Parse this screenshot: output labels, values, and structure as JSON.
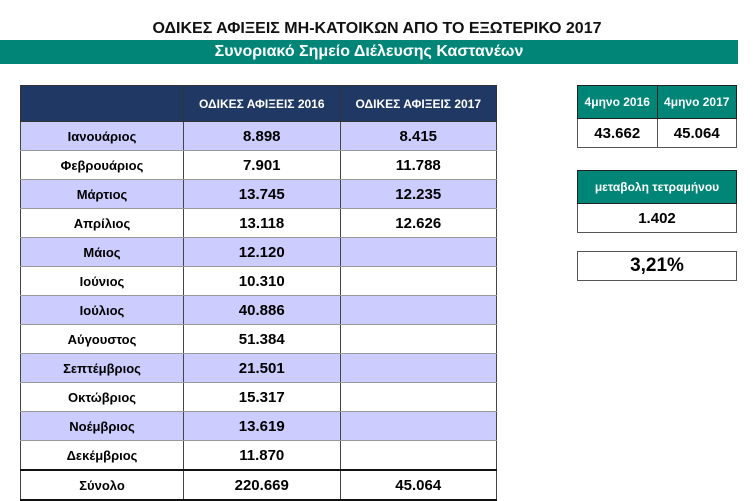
{
  "title": "ΟΔΙΚΕΣ ΑΦΙΞΕΙΣ ΜΗ-ΚΑΤΟΙΚΩΝ ΑΠΟ ΤΟ ΕΞΩΤΕΡΙΚΟ 2017",
  "subtitle": "Συνοριακό Σημείο Διέλευσης Καστανέων",
  "table": {
    "headers": [
      "",
      "ΟΔΙΚΕΣ ΑΦΙΞΕΙΣ 2016",
      "ΟΔΙΚΕΣ ΑΦΙΞΕΙΣ 2017"
    ],
    "rows": [
      [
        "Ιανουάριος",
        "8.898",
        "8.415"
      ],
      [
        "Φεβρουάριος",
        "7.901",
        "11.788"
      ],
      [
        "Μάρτιος",
        "13.745",
        "12.235"
      ],
      [
        "Απρίλιος",
        "13.118",
        "12.626"
      ],
      [
        "Μάιος",
        "12.120",
        ""
      ],
      [
        "Ιούνιος",
        "10.310",
        ""
      ],
      [
        "Ιούλιος",
        "40.886",
        ""
      ],
      [
        "Αύγουστος",
        "51.384",
        ""
      ],
      [
        "Σεπτέμβριος",
        "21.501",
        ""
      ],
      [
        "Οκτώβριος",
        "15.317",
        ""
      ],
      [
        "Νοέμβριος",
        "13.619",
        ""
      ],
      [
        "Δεκέμβριος",
        "11.870",
        ""
      ]
    ],
    "total": [
      "Σύνολο",
      "220.669",
      "45.064"
    ]
  },
  "four_month": {
    "h2016": "4μηνο 2016",
    "h2017": "4μηνο 2017",
    "v2016": "43.662",
    "v2017": "45.064"
  },
  "change": {
    "label": "μεταβολη τετραμήνου",
    "value": "1.402",
    "percent": "3,21%"
  }
}
